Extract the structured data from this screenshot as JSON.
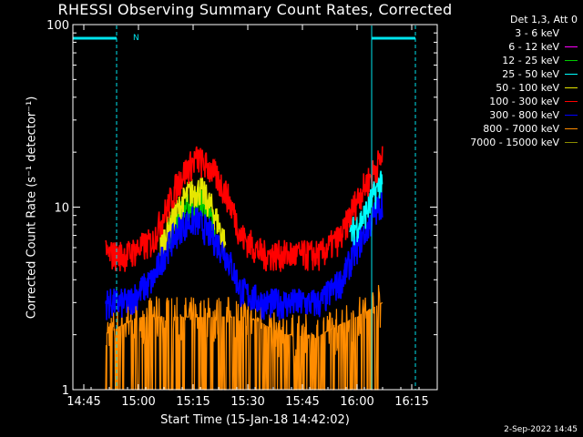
{
  "title": "RHESSI Observing Summary Count Rates, Corrected",
  "footer": "2-Sep-2022 14:45",
  "legend": {
    "header": "Det 1,3, Att 0",
    "items": [
      {
        "label": "3 - 6 keV",
        "color": "#000000"
      },
      {
        "label": "6 - 12 keV",
        "color": "#ff00ff"
      },
      {
        "label": "12 - 25 keV",
        "color": "#00cc00"
      },
      {
        "label": "25 - 50 keV",
        "color": "#00ffff"
      },
      {
        "label": "50 - 100 keV",
        "color": "#e6e600"
      },
      {
        "label": "100 - 300 keV",
        "color": "#ff0000"
      },
      {
        "label": "300 - 800 keV",
        "color": "#0000ff"
      },
      {
        "label": "800 - 7000 keV",
        "color": "#ff8c00"
      },
      {
        "label": "7000 - 15000 keV",
        "color": "#8b8b00"
      }
    ]
  },
  "chart_data": {
    "type": "line",
    "title": "RHESSI Observing Summary Count Rates, Corrected",
    "xlabel": "Start Time (15-Jan-18 14:42:02)",
    "ylabel": "Corrected Count Rate (s⁻¹ detector⁻¹)",
    "yscale": "log",
    "ylim": [
      1,
      100
    ],
    "xlim": [
      "14:42",
      "16:22"
    ],
    "x_ticks": [
      "14:45",
      "15:00",
      "15:15",
      "15:30",
      "15:45",
      "16:00",
      "16:15"
    ],
    "y_ticks": [
      "1",
      "10",
      "100"
    ],
    "annotations": [
      {
        "text": "N",
        "x": "14:57"
      }
    ],
    "night_bars": [
      {
        "start": "14:42",
        "end": "14:54"
      },
      {
        "start": "16:04",
        "end": "16:16"
      }
    ],
    "saa_lines": [
      "14:42",
      "14:54",
      "16:04",
      "16:16"
    ],
    "series": [
      {
        "name": "100 - 300 keV",
        "x": [
          "14:51",
          "14:57",
          "15:04",
          "15:08",
          "15:12",
          "15:16",
          "15:20",
          "15:24",
          "15:28",
          "15:34",
          "15:42",
          "15:50",
          "15:56",
          "16:00",
          "16:04",
          "16:07"
        ],
        "values": [
          5.5,
          5.5,
          6.5,
          10,
          15,
          18.5,
          16,
          12,
          7,
          5.5,
          5.5,
          5.5,
          7,
          11,
          15,
          19
        ]
      },
      {
        "name": "300 - 800 keV",
        "x": [
          "14:51",
          "14:57",
          "15:04",
          "15:08",
          "15:12",
          "15:16",
          "15:20",
          "15:24",
          "15:28",
          "15:34",
          "15:42",
          "15:50",
          "15:56",
          "16:00",
          "16:04",
          "16:07"
        ],
        "values": [
          3,
          3,
          4,
          6,
          8,
          8.5,
          7,
          5.5,
          3.5,
          3,
          3,
          3,
          4,
          6,
          8.5,
          11
        ]
      },
      {
        "name": "50 - 100 keV",
        "x": [
          "15:06",
          "15:10",
          "15:14",
          "15:17",
          "15:20",
          "15:24"
        ],
        "values": [
          6,
          9,
          12,
          12.5,
          10,
          6
        ]
      },
      {
        "name": "25 - 50 keV",
        "x": [
          "15:58",
          "16:02",
          "16:05",
          "16:07"
        ],
        "values": [
          7,
          9,
          12,
          15
        ]
      },
      {
        "name": "12 - 25 keV",
        "x": [
          "15:08",
          "15:13",
          "15:17",
          "15:21"
        ],
        "values": [
          7,
          10,
          11,
          8
        ]
      },
      {
        "name": "800 - 7000 keV",
        "x": [
          "14:51",
          "15:00",
          "15:10",
          "15:20",
          "15:30",
          "15:40",
          "15:50",
          "16:00",
          "16:07"
        ],
        "values": [
          2,
          2.5,
          2.5,
          2.5,
          2.5,
          2,
          2,
          2.5,
          3
        ]
      }
    ]
  }
}
